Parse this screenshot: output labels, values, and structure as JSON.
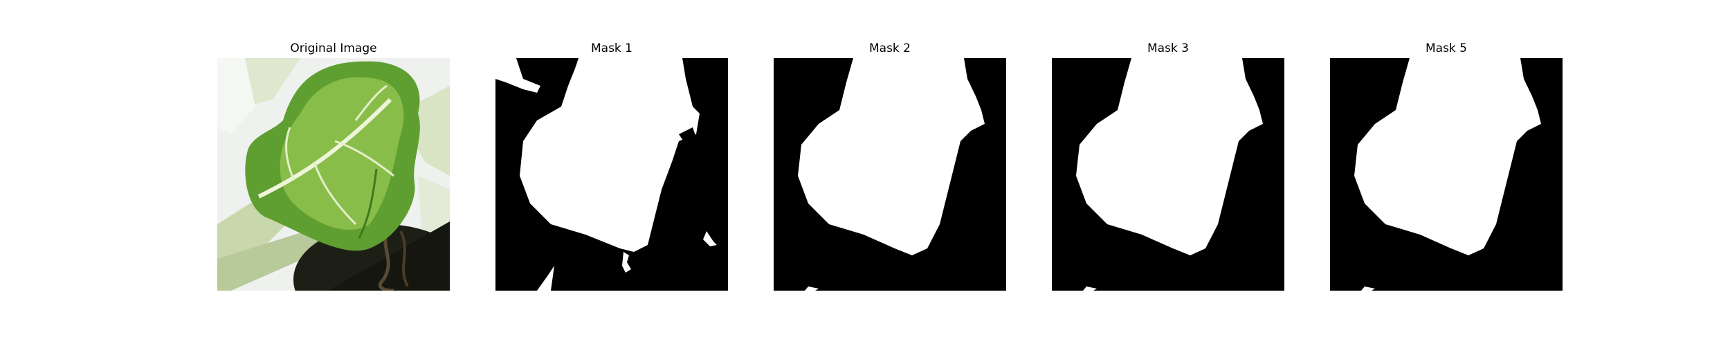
{
  "figure": {
    "panels": [
      {
        "title": "Original Image"
      },
      {
        "title": "Mask 1"
      },
      {
        "title": "Mask 2"
      },
      {
        "title": "Mask 3"
      },
      {
        "title": "Mask 5"
      }
    ]
  },
  "colors": {
    "mask_background": "#000000",
    "mask_foreground": "#ffffff",
    "leaf_light": "#9ccc55",
    "leaf_dark": "#4f8f2b",
    "stem": "#d7e3c2",
    "background_light": "#f4f6f3",
    "pot": "#1a1a14"
  }
}
